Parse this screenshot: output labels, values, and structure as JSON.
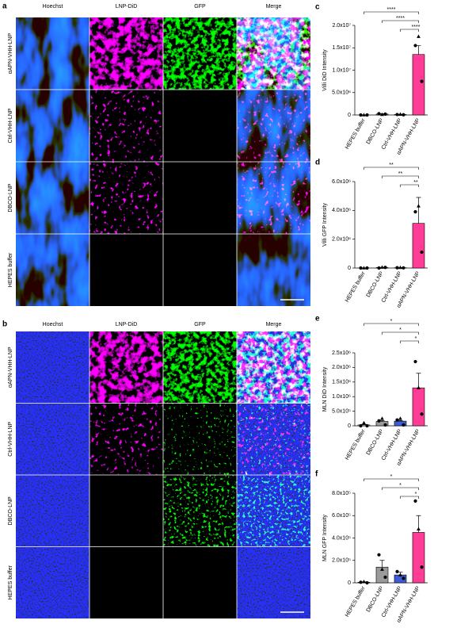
{
  "figure": {
    "panels": [
      {
        "label": "a",
        "columns": [
          "Hoechst",
          "LNP-DiD",
          "GFP",
          "Merge"
        ],
        "rows": [
          "αAPN-VHH-LNP",
          "Ctrl-VHH-LNP",
          "DBCO-LNP",
          "HEPES buffer"
        ]
      },
      {
        "label": "b",
        "columns": [
          "Hoechst",
          "LNP-DiD",
          "GFP",
          "Merge"
        ],
        "rows": [
          "αAPN-VHH-LNP",
          "Ctrl-VHH-LNP",
          "DBCO-LNP",
          "HEPES buffer"
        ]
      }
    ]
  },
  "chart_data": [
    {
      "type": "bar",
      "label": "c",
      "y_label": "Villi DiD Intensity",
      "categories": [
        "HEPES buffer",
        "DBCO-LNP",
        "Ctrl-VHH-LNP",
        "αAPN-VHH-LNP"
      ],
      "colors": [
        "#ffffff",
        "#9a9a9a",
        "#3f5bd6",
        "#ff3c96"
      ],
      "values": [
        0,
        200000,
        100000,
        13500000
      ],
      "errors": [
        0,
        60000,
        30000,
        2000000
      ],
      "points": [
        [
          0,
          0,
          0
        ],
        [
          300000,
          100000,
          200000
        ],
        [
          100000,
          150000,
          50000
        ],
        [
          15500000,
          17500000,
          7500000
        ]
      ],
      "ylim": [
        0,
        20000000
      ],
      "yticks": [
        0,
        {
          "value": 5000000,
          "label": "5.0x10⁶"
        },
        {
          "value": 10000000,
          "label": "1.0x10⁷"
        },
        {
          "value": 15000000,
          "label": "1.5x10⁷"
        },
        {
          "value": 20000000,
          "label": "2.0x10⁷"
        }
      ],
      "significance": [
        "****",
        "****",
        "****"
      ]
    },
    {
      "type": "bar",
      "label": "d",
      "y_label": "Villi GFP Intensity",
      "categories": [
        "HEPES buffer",
        "DBCO-LNP",
        "Ctrl-VHH-LNP",
        "αAPN-VHH-LNP"
      ],
      "colors": [
        "#ffffff",
        "#9a9a9a",
        "#3f5bd6",
        "#ff3c96"
      ],
      "values": [
        0,
        30000,
        20000,
        3100000
      ],
      "errors": [
        0,
        10000,
        10000,
        1800000
      ],
      "points": [
        [
          0,
          0,
          0
        ],
        [
          0,
          50000,
          40000
        ],
        [
          20000,
          30000,
          10000
        ],
        [
          3900000,
          4300000,
          1100000
        ]
      ],
      "ylim": [
        0,
        6000000
      ],
      "yticks": [
        0,
        {
          "value": 2000000,
          "label": "2.0x10⁶"
        },
        {
          "value": 4000000,
          "label": "4.0x10⁶"
        },
        {
          "value": 6000000,
          "label": "6.0x10⁶"
        }
      ],
      "significance": [
        "**",
        "**",
        "**"
      ]
    },
    {
      "type": "bar",
      "label": "e",
      "y_label": "MLN DiD Intensity",
      "categories": [
        "HEPES buffer",
        "DBCO-LNP",
        "Ctrl-VHH-LNP",
        "αAPN-VHH-LNP"
      ],
      "colors": [
        "#ffffff",
        "#9a9a9a",
        "#3f5bd6",
        "#ff3c96"
      ],
      "values": [
        30000,
        150000,
        160000,
        1300000
      ],
      "errors": [
        20000,
        30000,
        20000,
        500000
      ],
      "points": [
        [
          0,
          100000,
          0
        ],
        [
          170000,
          250000,
          30000
        ],
        [
          200000,
          250000,
          30000
        ],
        [
          2200000,
          1300000,
          400000
        ]
      ],
      "ylim": [
        0,
        2500000
      ],
      "yticks": [
        0,
        {
          "value": 500000,
          "label": "5.0x10⁵"
        },
        {
          "value": 1000000,
          "label": "1.0x10⁶"
        },
        {
          "value": 1500000,
          "label": "1.5x10⁶"
        },
        {
          "value": 2000000,
          "label": "2.0x10⁶"
        },
        {
          "value": 2500000,
          "label": "2.5x10⁶"
        }
      ],
      "significance": [
        "*",
        "*",
        "*"
      ]
    },
    {
      "type": "bar",
      "label": "f",
      "y_label": "MLN GFP Intensity",
      "categories": [
        "HEPES buffer",
        "DBCO-LNP",
        "Ctrl-VHH-LNP",
        "αAPN-VHH-LNP"
      ],
      "colors": [
        "#ffffff",
        "#9a9a9a",
        "#3f5bd6",
        "#ff3c96"
      ],
      "values": [
        5000,
        140000,
        70000,
        450000
      ],
      "errors": [
        3000,
        60000,
        25000,
        150000
      ],
      "points": [
        [
          5000,
          10000,
          0
        ],
        [
          250000,
          120000,
          50000
        ],
        [
          100000,
          70000,
          40000
        ],
        [
          730000,
          480000,
          140000
        ]
      ],
      "ylim": [
        0,
        800000
      ],
      "yticks": [
        0,
        {
          "value": 200000,
          "label": "2.0x10⁵"
        },
        {
          "value": 400000,
          "label": "4.0x10⁵"
        },
        {
          "value": 600000,
          "label": "6.0x10⁵"
        },
        {
          "value": 800000,
          "label": "8.0x10⁵"
        }
      ],
      "significance": [
        "*",
        "*",
        "*"
      ]
    }
  ]
}
